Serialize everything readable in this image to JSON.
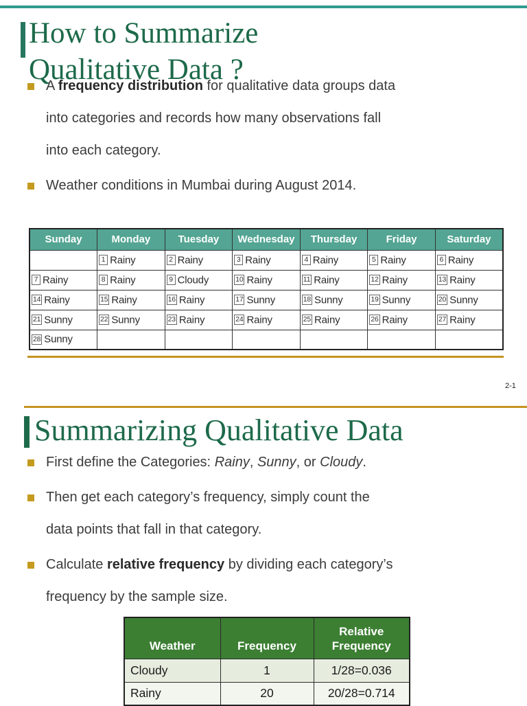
{
  "colors": {
    "accent_teal": "#2F9B8F",
    "title_green": "#1D6A4A",
    "gold": "#C49420",
    "calendar_header_bg": "#54A593",
    "freq_header_bg": "#3C7F33"
  },
  "slide1": {
    "title": "How to Summarize\nQualitative Data ?",
    "bullets": [
      {
        "segments": [
          {
            "text": "A ",
            "style": "n"
          },
          {
            "text": "frequency distribution",
            "style": "b"
          },
          {
            "text": " for qualitative data groups data\ninto categories and records how many observations fall\ninto each category.",
            "style": "n"
          }
        ]
      },
      {
        "segments": [
          {
            "text": "Weather conditions in Mumbai during August 2014.",
            "style": "n"
          }
        ]
      }
    ],
    "calendar": {
      "headers": [
        "Sunday",
        "Monday",
        "Tuesday",
        "Wednesday",
        "Thursday",
        "Friday",
        "Saturday"
      ],
      "rows": [
        [
          {
            "day": "",
            "weather": ""
          },
          {
            "day": "1",
            "weather": "Rainy"
          },
          {
            "day": "2",
            "weather": "Rainy"
          },
          {
            "day": "3",
            "weather": "Rainy"
          },
          {
            "day": "4",
            "weather": "Rainy"
          },
          {
            "day": "5",
            "weather": "Rainy"
          },
          {
            "day": "6",
            "weather": "Rainy"
          }
        ],
        [
          {
            "day": "7",
            "weather": "Rainy"
          },
          {
            "day": "8",
            "weather": "Rainy"
          },
          {
            "day": "9",
            "weather": "Cloudy"
          },
          {
            "day": "10",
            "weather": "Rainy"
          },
          {
            "day": "11",
            "weather": "Rainy"
          },
          {
            "day": "12",
            "weather": "Rainy"
          },
          {
            "day": "13",
            "weather": "Rainy"
          }
        ],
        [
          {
            "day": "14",
            "weather": "Rainy"
          },
          {
            "day": "15",
            "weather": "Rainy"
          },
          {
            "day": "16",
            "weather": "Rainy"
          },
          {
            "day": "17",
            "weather": "Sunny"
          },
          {
            "day": "18",
            "weather": "Sunny"
          },
          {
            "day": "19",
            "weather": "Sunny"
          },
          {
            "day": "20",
            "weather": "Sunny"
          }
        ],
        [
          {
            "day": "21",
            "weather": "Sunny"
          },
          {
            "day": "22",
            "weather": "Sunny"
          },
          {
            "day": "23",
            "weather": "Rainy"
          },
          {
            "day": "24",
            "weather": "Rainy"
          },
          {
            "day": "25",
            "weather": "Rainy"
          },
          {
            "day": "26",
            "weather": "Rainy"
          },
          {
            "day": "27",
            "weather": "Rainy"
          }
        ],
        [
          {
            "day": "28",
            "weather": "Sunny"
          },
          {
            "day": "",
            "weather": ""
          },
          {
            "day": "",
            "weather": ""
          },
          {
            "day": "",
            "weather": ""
          },
          {
            "day": "",
            "weather": ""
          },
          {
            "day": "",
            "weather": ""
          },
          {
            "day": "",
            "weather": ""
          }
        ]
      ]
    },
    "page_number": "2-1"
  },
  "slide2": {
    "title": "Summarizing Qualitative Data",
    "bullets": [
      {
        "segments": [
          {
            "text": "First define the Categories: ",
            "style": "n"
          },
          {
            "text": "Rainy",
            "style": "i"
          },
          {
            "text": ", ",
            "style": "n"
          },
          {
            "text": "Sunny",
            "style": "i"
          },
          {
            "text": ", or ",
            "style": "n"
          },
          {
            "text": "Cloudy",
            "style": "i"
          },
          {
            "text": ".",
            "style": "n"
          }
        ]
      },
      {
        "segments": [
          {
            "text": "Then get each category’s frequency, simply count the\ndata points that fall in that category.",
            "style": "n"
          }
        ]
      },
      {
        "segments": [
          {
            "text": "Calculate ",
            "style": "n"
          },
          {
            "text": "relative frequency",
            "style": "b"
          },
          {
            "text": " by dividing each category’s\nfrequency by the sample size.",
            "style": "n"
          }
        ]
      }
    ],
    "table": {
      "headers": [
        "Weather",
        "Frequency",
        "Relative Frequency"
      ],
      "rows": [
        [
          "Cloudy",
          "1",
          "1/28=0.036"
        ],
        [
          "Rainy",
          "20",
          "20/28=0.714"
        ]
      ]
    }
  }
}
